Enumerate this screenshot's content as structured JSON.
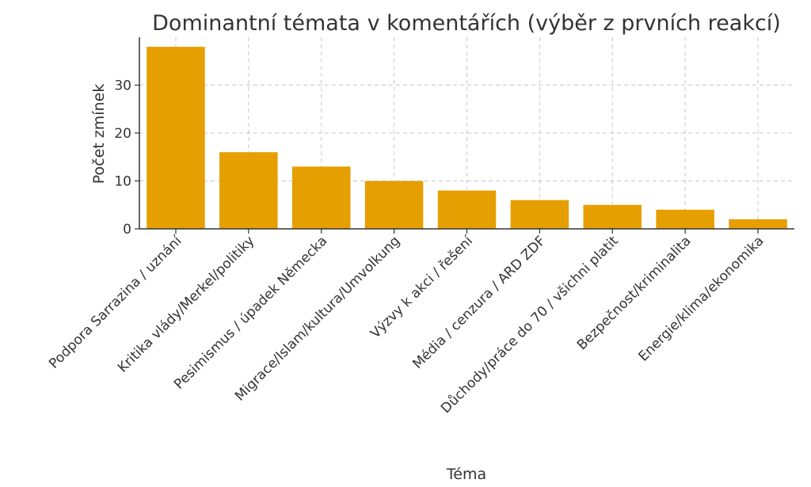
{
  "chart_data": {
    "type": "bar",
    "title": "Dominantní témata v komentářích (výběr z prvních reakcí)",
    "xlabel": "Téma",
    "ylabel": "Počet zmínek",
    "categories": [
      "Podpora Sarrazina / uznání",
      "Kritika vlády/Merkel/politiky",
      "Pesimismus / úpadek Německa",
      "Migrace/Islam/kultura/Umvolkung",
      "Výzvy k akci / řešení",
      "Média / cenzura / ARD ZDF",
      "Důchody/práce do 70 / všichni platit",
      "Bezpečnost/kriminalita",
      "Energie/klima/ekonomika"
    ],
    "values": [
      38,
      16,
      13,
      10,
      8,
      6,
      5,
      4,
      2
    ],
    "ylim": [
      0,
      40
    ],
    "yticks": [
      0,
      10,
      20,
      30
    ],
    "grid": true,
    "bar_color": "#E69F00"
  }
}
